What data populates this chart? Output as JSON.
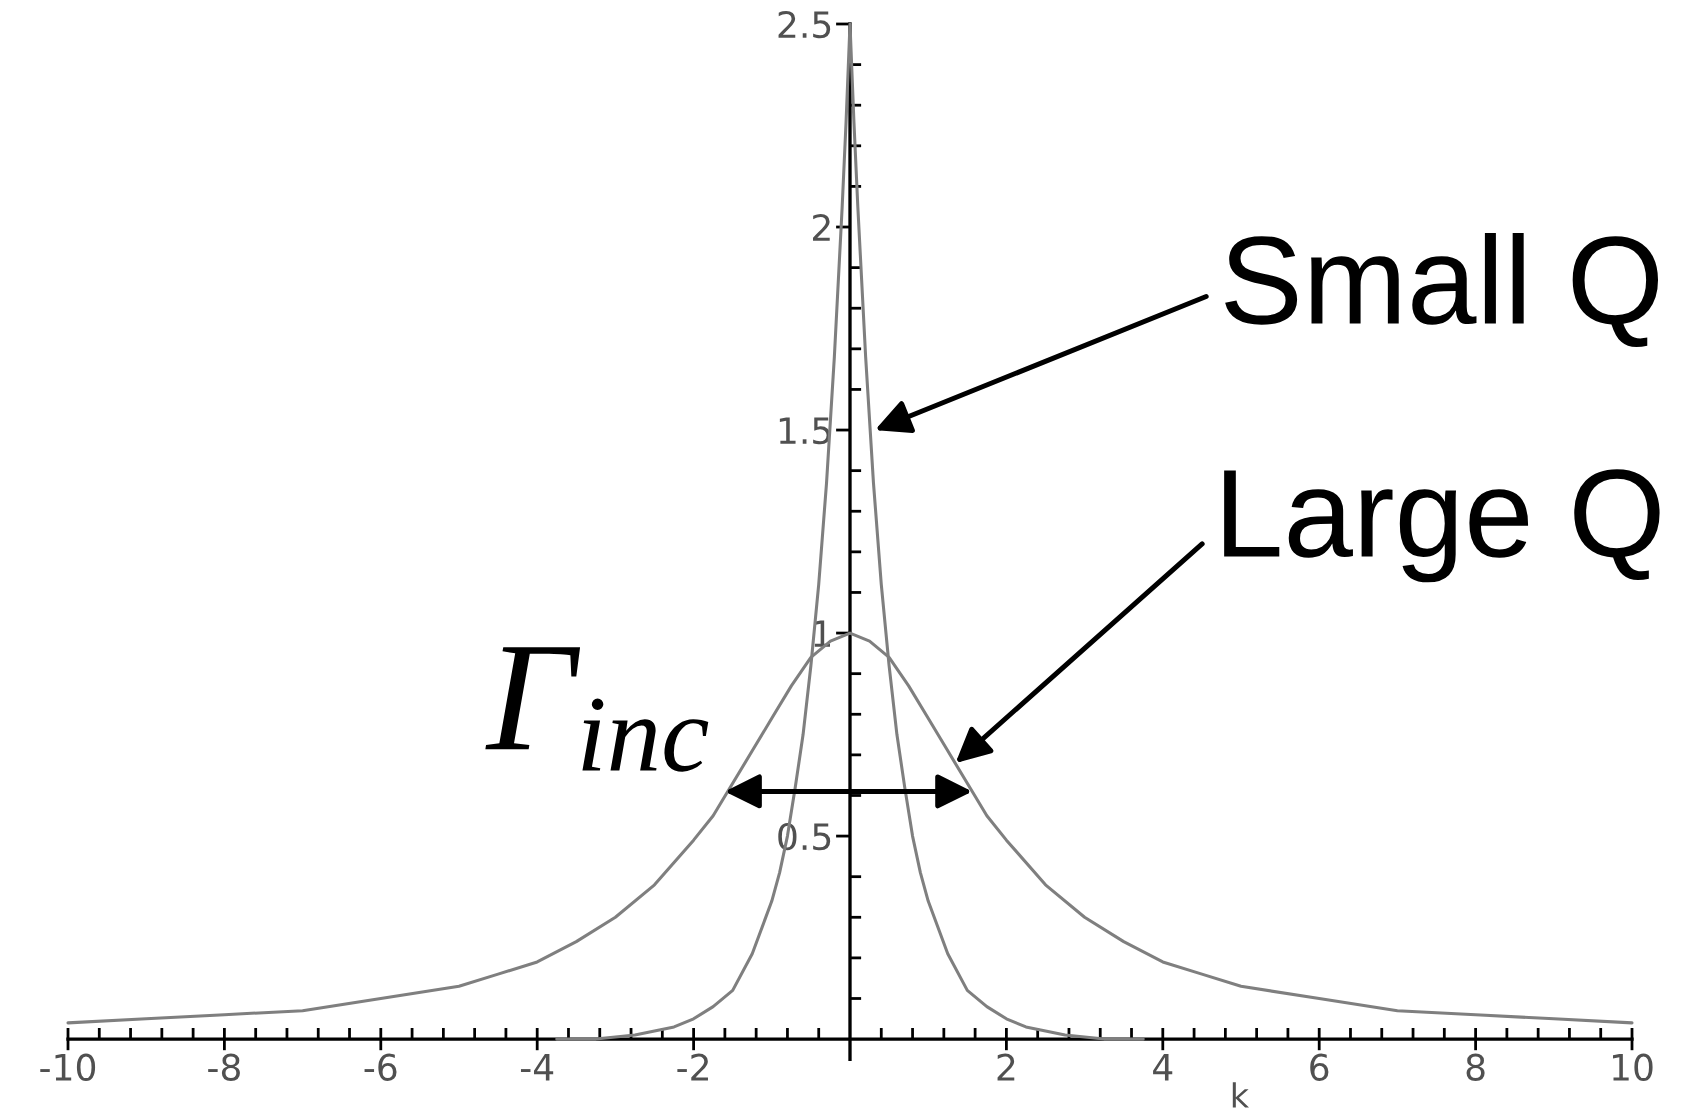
{
  "chart_data": {
    "type": "line",
    "xlabel": "k",
    "series": [
      {
        "color": "#7f7f7f",
        "x": [
          -3.75,
          -3.25,
          -2.75,
          -2.5,
          -2.25,
          -2,
          -1.75,
          -1.5,
          -1.25,
          -1,
          -0.9,
          -0.8,
          -0.7,
          -0.6,
          -0.5,
          -0.4,
          -0.3,
          -0.2,
          -0.1,
          -0.05,
          0,
          0.05,
          0.1,
          0.2,
          0.3,
          0.4,
          0.5,
          0.6,
          0.7,
          0.8,
          0.9,
          1,
          1.25,
          1.5,
          1.75,
          2,
          2.25,
          2.5,
          2.75,
          3.25,
          3.75
        ],
        "values": [
          0,
          0,
          0.01,
          0.02,
          0.03,
          0.05,
          0.08,
          0.12,
          0.21,
          0.34,
          0.41,
          0.5,
          0.62,
          0.75,
          0.92,
          1.12,
          1.37,
          1.68,
          2.05,
          2.26,
          2.5,
          2.26,
          2.05,
          1.68,
          1.37,
          1.12,
          0.92,
          0.75,
          0.62,
          0.5,
          0.41,
          0.34,
          0.21,
          0.12,
          0.08,
          0.05,
          0.03,
          0.02,
          0.01,
          0,
          0
        ]
      },
      {
        "color": "#7f7f7f",
        "x": [
          -10,
          -9,
          -8,
          -7,
          -6,
          -5,
          -4.5,
          -4,
          -3.5,
          -3,
          -2.5,
          -2,
          -1.75,
          -1.5,
          -1.25,
          -1,
          -0.75,
          -0.5,
          -0.25,
          0,
          0.25,
          0.5,
          0.75,
          1,
          1.25,
          1.5,
          1.75,
          2,
          2.5,
          3,
          3.5,
          4,
          4.5,
          5,
          6,
          7,
          8,
          9,
          10
        ],
        "values": [
          0.04,
          0.05,
          0.06,
          0.07,
          0.1,
          0.13,
          0.16,
          0.19,
          0.24,
          0.3,
          0.38,
          0.49,
          0.55,
          0.63,
          0.71,
          0.79,
          0.87,
          0.94,
          0.98,
          1.0,
          0.98,
          0.94,
          0.87,
          0.79,
          0.71,
          0.63,
          0.55,
          0.49,
          0.38,
          0.3,
          0.24,
          0.19,
          0.16,
          0.13,
          0.1,
          0.07,
          0.06,
          0.05,
          0.04
        ]
      }
    ],
    "xlim": [
      -10,
      10
    ],
    "ylim": [
      -0.05,
      2.5
    ],
    "xticks": [
      -10,
      {
        "value": -9.6,
        "label": null
      },
      {
        "value": -9.2,
        "label": null
      },
      {
        "value": -8.8,
        "label": null
      },
      {
        "value": -8.4,
        "label": null
      },
      -8,
      {
        "value": -7.6,
        "label": null
      },
      {
        "value": -7.2,
        "label": null
      },
      {
        "value": -6.8,
        "label": null
      },
      {
        "value": -6.4,
        "label": null
      },
      -6,
      {
        "value": -5.6,
        "label": null
      },
      {
        "value": -5.2,
        "label": null
      },
      {
        "value": -4.8,
        "label": null
      },
      {
        "value": -4.4,
        "label": null
      },
      -4,
      {
        "value": -3.6,
        "label": null
      },
      {
        "value": -3.2,
        "label": null
      },
      {
        "value": -2.8,
        "label": null
      },
      {
        "value": -2.4,
        "label": null
      },
      -2,
      {
        "value": -1.6,
        "label": null
      },
      {
        "value": -1.2,
        "label": null
      },
      {
        "value": -0.8,
        "label": null
      },
      {
        "value": -0.4,
        "label": null
      },
      {
        "value": 0.4,
        "label": null
      },
      {
        "value": 0.8,
        "label": null
      },
      {
        "value": 1.2,
        "label": null
      },
      {
        "value": 1.6,
        "label": null
      },
      2,
      {
        "value": 2.4,
        "label": null
      },
      {
        "value": 2.8,
        "label": null
      },
      {
        "value": 3.2,
        "label": null
      },
      {
        "value": 3.6,
        "label": null
      },
      4,
      {
        "value": 4.4,
        "label": null
      },
      {
        "value": 4.8,
        "label": null
      },
      {
        "value": 5.2,
        "label": null
      },
      {
        "value": 5.6,
        "label": null
      },
      6,
      {
        "value": 6.4,
        "label": null
      },
      {
        "value": 6.8,
        "label": null
      },
      {
        "value": 7.2,
        "label": null
      },
      {
        "value": 7.6,
        "label": null
      },
      8,
      {
        "value": 8.4,
        "label": null
      },
      {
        "value": 8.8,
        "label": null
      },
      {
        "value": 9.2,
        "label": null
      },
      {
        "value": 9.6,
        "label": null
      },
      10
    ],
    "yticks": [
      {
        "value": 0.1,
        "label": null
      },
      {
        "value": 0.2,
        "label": null
      },
      {
        "value": 0.3,
        "label": null
      },
      {
        "value": 0.4,
        "label": null
      },
      0.5,
      {
        "value": 0.6,
        "label": null
      },
      {
        "value": 0.7,
        "label": null
      },
      {
        "value": 0.8,
        "label": null
      },
      {
        "value": 0.9,
        "label": null
      },
      1,
      {
        "value": 1.1,
        "label": null
      },
      {
        "value": 1.2,
        "label": null
      },
      {
        "value": 1.3,
        "label": null
      },
      {
        "value": 1.4,
        "label": null
      },
      1.5,
      {
        "value": 1.6,
        "label": null
      },
      {
        "value": 1.7,
        "label": null
      },
      {
        "value": 1.8,
        "label": null
      },
      {
        "value": 1.9,
        "label": null
      },
      2,
      {
        "value": 2.1,
        "label": null
      },
      {
        "value": 2.2,
        "label": null
      },
      {
        "value": 2.3,
        "label": null
      },
      {
        "value": 2.4,
        "label": null
      },
      2.5
    ],
    "annotations": [
      {
        "text": "Small Q",
        "x": 0.32,
        "y": 1.5
      },
      {
        "text": "Large Q",
        "x": 1.35,
        "y": 0.68
      },
      {
        "text": "Γ$_{inc}$",
        "x": -1.6,
        "y": 0.61
      }
    ]
  }
}
